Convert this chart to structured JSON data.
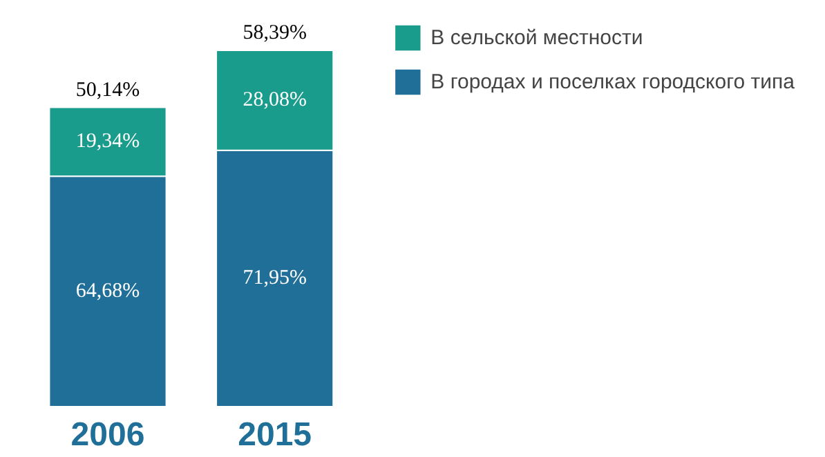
{
  "chart_data": {
    "type": "bar",
    "stacked": true,
    "categories": [
      "2006",
      "2015"
    ],
    "series": [
      {
        "name": "В городах и поселках городского типа",
        "color": "#1f6f98",
        "values": [
          64.68,
          71.95
        ],
        "value_labels": [
          "64,68%",
          "71,95%"
        ]
      },
      {
        "name": "В сельской местности",
        "color": "#1a9c8c",
        "values": [
          19.34,
          28.08
        ],
        "value_labels": [
          "19,34%",
          "28,08%"
        ]
      }
    ],
    "annotations": [
      {
        "text": "50,14%",
        "x": "2006",
        "y": 84.02
      },
      {
        "text": "58,39%",
        "x": "2015",
        "y": 100.03
      }
    ],
    "tick_labels": "x",
    "legend": "top right"
  }
}
